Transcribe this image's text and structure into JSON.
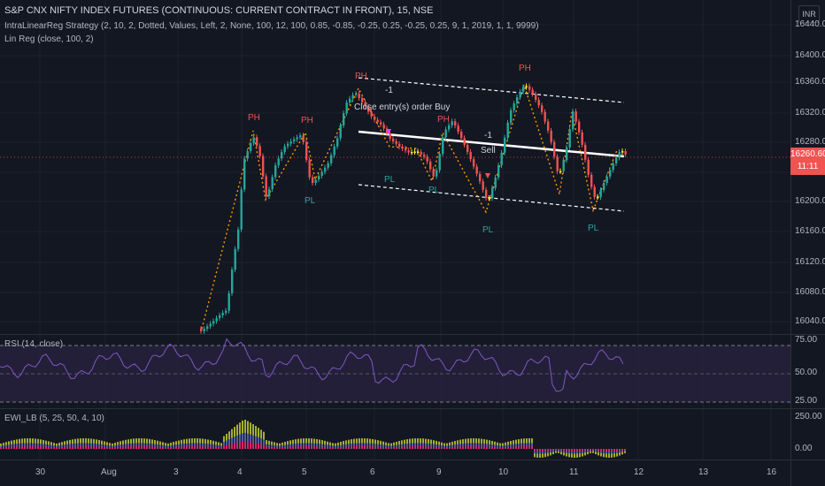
{
  "header": {
    "title": "S&P CNX NIFTY INDEX FUTURES (CONTINUOUS: CURRENT CONTRACT IN FRONT), 15, NSE",
    "currency": "INR"
  },
  "indicators": {
    "strategy": "IntraLinearReg Strategy (2, 10, 2, Dotted, Values, Left, 2, None, 100, 12, 100, 0.85, -0.85, -0.25, 0.25, -0.25, 0.25, 9, 1, 2019, 1, 1, 9999)",
    "linreg": "Lin Reg (close, 100, 2)",
    "rsi": "RSI (14, close)",
    "ewi": "EWI_LB (5, 25, 50, 4, 10)"
  },
  "price_axis": [
    "16440.00",
    "16400.00",
    "16360.00",
    "16320.00",
    "16280.00",
    "16200.00",
    "16160.00",
    "16120.00",
    "16080.00",
    "16040.00"
  ],
  "current_price": {
    "value": "16260.60",
    "countdown": "11:11"
  },
  "rsi_axis": [
    "75.00",
    "50.00",
    "25.00"
  ],
  "ewi_axis": [
    "250.00",
    "0.00"
  ],
  "time_axis": [
    "30",
    "Aug",
    "3",
    "4",
    "5",
    "6",
    "9",
    "10",
    "11",
    "12",
    "13",
    "16"
  ],
  "annotations": {
    "ph": "PH",
    "pl": "PL",
    "order_close": "Close entry(s) order Buy",
    "sell": "Sell",
    "neg_one": "-1"
  },
  "colors": {
    "background": "#131722",
    "up": "#26a69a",
    "down": "#ef5350",
    "neutral": "#ffeb3b",
    "pivot_high": "#ef5350",
    "pivot_low": "#26a69a",
    "zigzag": "#ff9800",
    "rsi_line": "#7e57c2",
    "rsi_band": "#2a2340",
    "price_tag": "#f05350",
    "order_marker": "#e040fb"
  }
}
